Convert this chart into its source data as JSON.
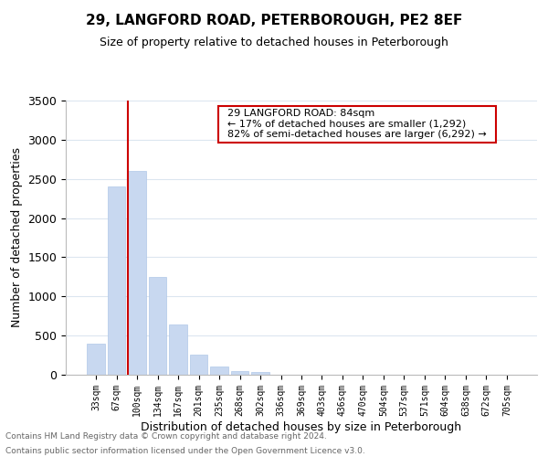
{
  "title": "29, LANGFORD ROAD, PETERBOROUGH, PE2 8EF",
  "subtitle": "Size of property relative to detached houses in Peterborough",
  "xlabel": "Distribution of detached houses by size in Peterborough",
  "ylabel": "Number of detached properties",
  "categories": [
    "33sqm",
    "67sqm",
    "100sqm",
    "134sqm",
    "167sqm",
    "201sqm",
    "235sqm",
    "268sqm",
    "302sqm",
    "336sqm",
    "369sqm",
    "403sqm",
    "436sqm",
    "470sqm",
    "504sqm",
    "537sqm",
    "571sqm",
    "604sqm",
    "638sqm",
    "672sqm",
    "705sqm"
  ],
  "bar_values": [
    400,
    2400,
    2600,
    1250,
    640,
    260,
    110,
    50,
    30,
    0,
    0,
    0,
    0,
    0,
    0,
    0,
    0,
    0,
    0,
    0,
    0
  ],
  "bar_color": "#c8d8f0",
  "bar_edge_color": "#b0c8e8",
  "vline_color": "#cc0000",
  "vline_x_index": 1.575,
  "ylim": [
    0,
    3500
  ],
  "yticks": [
    0,
    500,
    1000,
    1500,
    2000,
    2500,
    3000,
    3500
  ],
  "annotation_title": "29 LANGFORD ROAD: 84sqm",
  "annotation_line1": "← 17% of detached houses are smaller (1,292)",
  "annotation_line2": "82% of semi-detached houses are larger (6,292) →",
  "footer_line1": "Contains HM Land Registry data © Crown copyright and database right 2024.",
  "footer_line2": "Contains public sector information licensed under the Open Government Licence v3.0.",
  "background_color": "#ffffff",
  "grid_color": "#dce6f0",
  "title_fontsize": 11,
  "subtitle_fontsize": 9,
  "xlabel_fontsize": 9,
  "ylabel_fontsize": 9,
  "xtick_fontsize": 7,
  "ytick_fontsize": 9,
  "annotation_fontsize": 8,
  "footer_fontsize": 6.5
}
